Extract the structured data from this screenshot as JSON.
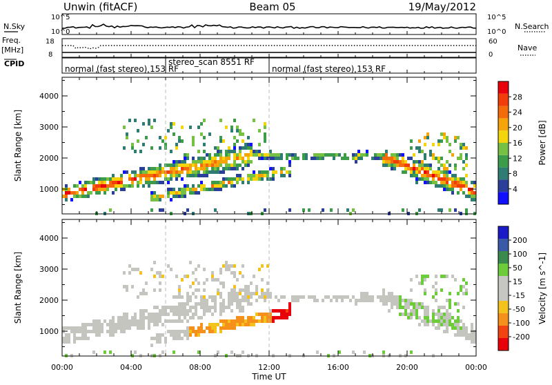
{
  "header": {
    "left_title": "Unwin (fitACF)",
    "center_title": "Beam 05",
    "right_title": "19/May/2012"
  },
  "top_strips": {
    "nsky_label": "N.Sky",
    "nsearch_label": "N.Search",
    "nsky_ticks": [
      "10^5",
      "10^0"
    ],
    "nsearch_ticks": [
      "10^5",
      "10^0"
    ],
    "freq_label": "Freq.",
    "freq_units": "[MHz]",
    "freq_ticks": [
      "18",
      "8"
    ],
    "nave_label": "Nave",
    "nave_ticks": [
      "60",
      "0"
    ],
    "cpid_label": "CPID",
    "cpid_segments": [
      {
        "label": "normal (fast stereo) 153 RF",
        "start_hour": 0,
        "end_hour": 6
      },
      {
        "label": "stereo_scan 8551 RF",
        "start_hour": 6,
        "end_hour": 12
      },
      {
        "label": "normal (fast stereo) 153 RF",
        "start_hour": 12,
        "end_hour": 24
      }
    ]
  },
  "colors": {
    "power_scale": [
      "#1010ff",
      "#2a3f9a",
      "#2f7d72",
      "#3d9c4a",
      "#76c043",
      "#f4d40a",
      "#f5a40a",
      "#f36b0a",
      "#f23c0a",
      "#e8000a"
    ],
    "velocity_scale": [
      "#e8000a",
      "#f24410",
      "#f5901a",
      "#f3c21c",
      "#c6c6c2",
      "#c6c6c2",
      "#6dcc3a",
      "#3a8a4e",
      "#3a5aa8",
      "#1a1ac8"
    ],
    "grey": "#c5c5c0"
  },
  "chart_data": [
    {
      "type": "heatmap",
      "title": "",
      "xlabel": "Time UT",
      "ylabel": "Slant Range [km]",
      "x_ticks": [
        "00:00",
        "04:00",
        "08:00",
        "12:00",
        "16:00",
        "20:00",
        "00:00"
      ],
      "x_range_hours": [
        0,
        24
      ],
      "y_ticks": [
        "1000",
        "2000",
        "3000",
        "4000"
      ],
      "ylim": [
        200,
        4600
      ],
      "colorbar": {
        "label": "Power [dB]",
        "ticks": [
          "4",
          "8",
          "12",
          "16",
          "20",
          "24",
          "28"
        ],
        "range": [
          0,
          30
        ]
      },
      "features": [
        {
          "name": "main echo band",
          "hours": [
            0,
            11
          ],
          "range_km_start": [
            800,
            2200
          ],
          "peak_power_db": 30
        },
        {
          "name": "dayside band",
          "hours": [
            11,
            19
          ],
          "range_km": [
            1900,
            2300
          ],
          "peak_power_db": 14
        },
        {
          "name": "evening band",
          "hours": [
            19,
            24
          ],
          "range_km_start": [
            2000,
            900
          ],
          "peak_power_db": 30
        },
        {
          "name": "lower arc",
          "hours": [
            6,
            13
          ],
          "range_km": [
            600,
            1700
          ],
          "peak_power_db": 18
        }
      ]
    },
    {
      "type": "heatmap",
      "title": "",
      "xlabel": "Time UT",
      "ylabel": "Slant Range [km]",
      "x_ticks": [
        "00:00",
        "04:00",
        "08:00",
        "12:00",
        "16:00",
        "20:00",
        "00:00"
      ],
      "x_range_hours": [
        0,
        24
      ],
      "y_ticks": [
        "1000",
        "2000",
        "3000",
        "4000"
      ],
      "ylim": [
        200,
        4600
      ],
      "colorbar": {
        "label": "Velocity [m s^-1]",
        "ticks": [
          "-200",
          "-100",
          "-50",
          "-15",
          "15",
          "50",
          "100",
          "200"
        ],
        "range": [
          -250,
          250
        ]
      },
      "features": [
        {
          "name": "ground scatter band",
          "hours": [
            0,
            24
          ],
          "velocity_ms": 0
        },
        {
          "name": "strong negative patch",
          "hours": [
            12,
            13.7
          ],
          "range_km": [
            1300,
            2000
          ],
          "velocity_ms": -200
        },
        {
          "name": "lower arc",
          "hours": [
            7.5,
            12.5
          ],
          "range_km": [
            600,
            1600
          ],
          "velocity_ms": -50
        }
      ]
    }
  ]
}
